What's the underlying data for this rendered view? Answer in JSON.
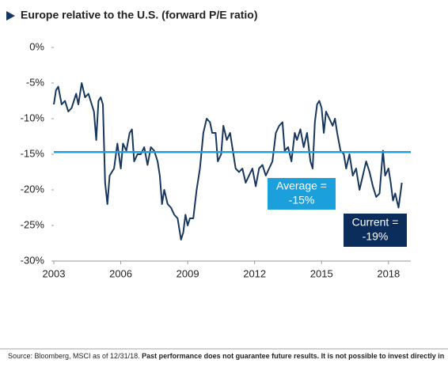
{
  "chart_data": {
    "type": "line",
    "title": "Europe relative to the U.S. (forward P/E ratio)",
    "x": [
      2003.0,
      2003.1,
      2003.2,
      2003.35,
      2003.5,
      2003.65,
      2003.8,
      2004.0,
      2004.1,
      2004.25,
      2004.4,
      2004.55,
      2004.7,
      2004.8,
      2004.9,
      2005.0,
      2005.1,
      2005.2,
      2005.3,
      2005.4,
      2005.5,
      2005.7,
      2005.85,
      2006.0,
      2006.1,
      2006.25,
      2006.4,
      2006.5,
      2006.6,
      2006.75,
      2006.9,
      2007.05,
      2007.2,
      2007.35,
      2007.5,
      2007.65,
      2007.75,
      2007.85,
      2007.95,
      2008.1,
      2008.25,
      2008.4,
      2008.55,
      2008.7,
      2008.8,
      2008.9,
      2009.0,
      2009.1,
      2009.25,
      2009.4,
      2009.55,
      2009.7,
      2009.85,
      2010.0,
      2010.1,
      2010.25,
      2010.35,
      2010.5,
      2010.6,
      2010.75,
      2010.9,
      2011.0,
      2011.15,
      2011.3,
      2011.45,
      2011.6,
      2011.75,
      2011.9,
      2012.05,
      2012.2,
      2012.35,
      2012.5,
      2012.65,
      2012.8,
      2012.95,
      2013.1,
      2013.25,
      2013.35,
      2013.5,
      2013.65,
      2013.8,
      2013.9,
      2014.05,
      2014.2,
      2014.35,
      2014.5,
      2014.6,
      2014.7,
      2014.8,
      2014.9,
      2015.0,
      2015.1,
      2015.2,
      2015.35,
      2015.5,
      2015.6,
      2015.7,
      2015.85,
      2016.0,
      2016.1,
      2016.25,
      2016.4,
      2016.55,
      2016.7,
      2016.85,
      2017.0,
      2017.15,
      2017.3,
      2017.45,
      2017.6,
      2017.75,
      2017.85,
      2018.0,
      2018.1,
      2018.2,
      2018.3,
      2018.45,
      2018.6
    ],
    "series": [
      {
        "name": "Europe relative to the U.S.",
        "color": "#17375e",
        "values": [
          -8,
          -6,
          -5.5,
          -8,
          -7.5,
          -9,
          -8.5,
          -6.5,
          -8,
          -5,
          -7,
          -6.5,
          -8,
          -9,
          -13,
          -7.5,
          -7,
          -8,
          -19,
          -22,
          -18,
          -17,
          -13.5,
          -17,
          -13.5,
          -14.5,
          -12,
          -11.5,
          -16,
          -15,
          -15,
          -14,
          -16.5,
          -14,
          -14.5,
          -16,
          -18,
          -22,
          -20,
          -22,
          -22.5,
          -23.5,
          -24,
          -27,
          -26,
          -23.5,
          -25,
          -24,
          -24,
          -20,
          -17,
          -12,
          -10,
          -10.5,
          -12,
          -12,
          -16,
          -15,
          -11,
          -13,
          -12,
          -14,
          -17,
          -17.5,
          -17,
          -19,
          -18,
          -17,
          -19.5,
          -17,
          -16.5,
          -18,
          -17,
          -16,
          -12,
          -11,
          -10.5,
          -14.5,
          -14,
          -16,
          -12,
          -13,
          -11.5,
          -14,
          -12,
          -16,
          -17,
          -10.5,
          -8,
          -7.5,
          -8.5,
          -12,
          -9,
          -10,
          -11,
          -10,
          -12,
          -14.5,
          -15,
          -17,
          -15,
          -18,
          -17,
          -20,
          -18,
          -16,
          -17.5,
          -19.5,
          -21,
          -20.5,
          -14.5,
          -18,
          -17,
          -19,
          -21.5,
          -20.5,
          -22.5,
          -19
        ]
      }
    ],
    "average": {
      "value": -14.7,
      "color": "#1ca0dc"
    },
    "average_label": [
      "Average =",
      "-15%"
    ],
    "current_label": [
      "Current =",
      "-19%"
    ],
    "current_color": "#0b2d5b",
    "xlim": [
      2003,
      2019
    ],
    "xticks": [
      2003,
      2006,
      2009,
      2012,
      2015,
      2018
    ],
    "ylim": [
      -30,
      0
    ],
    "yticks": [
      {
        "value": 0,
        "label": "0%"
      },
      {
        "value": -5,
        "label": "-5%"
      },
      {
        "value": -10,
        "label": "-10%"
      },
      {
        "value": -15,
        "label": "-15%"
      },
      {
        "value": -20,
        "label": "-20%"
      },
      {
        "value": -25,
        "label": "-25%"
      },
      {
        "value": -30,
        "label": "-30%"
      }
    ],
    "grid": false,
    "source": "Source: Bloomberg, MSCI as of 12/31/18.",
    "disclaimer": "Past performance does not guarantee future results. It is not possible to invest directly in"
  }
}
